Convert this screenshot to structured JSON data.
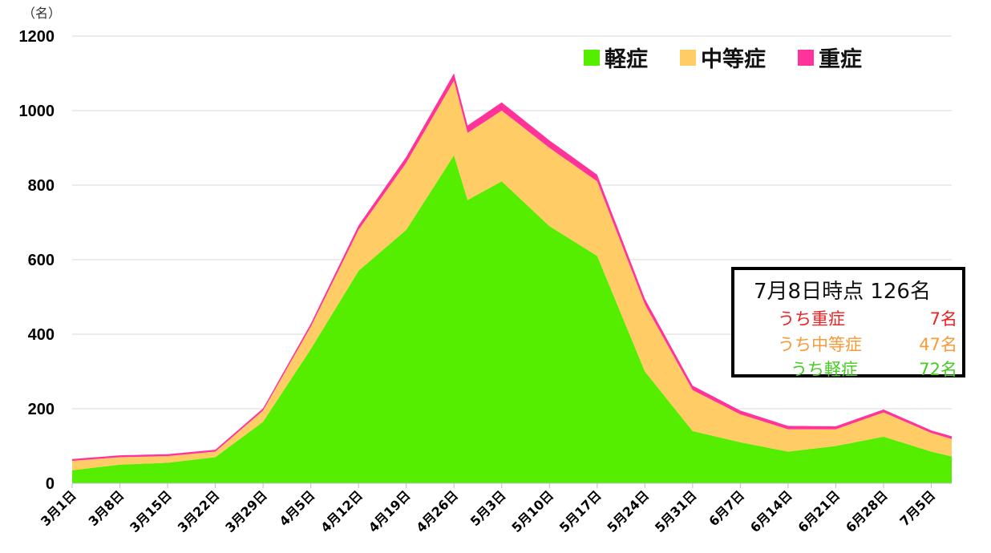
{
  "unit_label": "（名）",
  "legend": [
    {
      "label": "軽症",
      "color": "#55ee00"
    },
    {
      "label": "中等症",
      "color": "#ffcc66"
    },
    {
      "label": "重症",
      "color": "#ff3399"
    }
  ],
  "info_box": {
    "title": "7月8日時点 126名",
    "rows": [
      {
        "label": "うち重症",
        "value": "7名",
        "color": "#ee2222"
      },
      {
        "label": "うち中等症",
        "value": "47名",
        "color": "#f79a3a"
      },
      {
        "label": "うち軽症",
        "value": "72名",
        "color": "#44cc22"
      }
    ]
  },
  "chart_data": {
    "type": "area",
    "stacked": true,
    "ylim": [
      0,
      1200
    ],
    "yticks": [
      0,
      200,
      400,
      600,
      800,
      1000,
      1200
    ],
    "xlim": [
      0,
      129
    ],
    "xtick_labels": [
      "3月1日",
      "3月8日",
      "3月15日",
      "3月22日",
      "3月29日",
      "4月5日",
      "4月12日",
      "4月19日",
      "4月26日",
      "5月3日",
      "5月10日",
      "5月17日",
      "5月24日",
      "5月31日",
      "6月7日",
      "6月14日",
      "6月21日",
      "6月28日",
      "7月5日"
    ],
    "xtick_days": [
      0,
      7,
      14,
      21,
      28,
      35,
      42,
      49,
      56,
      63,
      70,
      77,
      84,
      91,
      98,
      105,
      112,
      119,
      126
    ],
    "grid": true,
    "legend_position": "top-right",
    "series": [
      {
        "name": "軽症",
        "color": "#55ee00",
        "points": [
          [
            0,
            35
          ],
          [
            7,
            50
          ],
          [
            14,
            55
          ],
          [
            21,
            70
          ],
          [
            28,
            165
          ],
          [
            35,
            360
          ],
          [
            42,
            570
          ],
          [
            49,
            680
          ],
          [
            56,
            880
          ],
          [
            58,
            760
          ],
          [
            63,
            810
          ],
          [
            70,
            690
          ],
          [
            77,
            610
          ],
          [
            84,
            300
          ],
          [
            91,
            140
          ],
          [
            98,
            110
          ],
          [
            105,
            85
          ],
          [
            112,
            100
          ],
          [
            119,
            125
          ],
          [
            126,
            85
          ],
          [
            129,
            72
          ]
        ]
      },
      {
        "name": "中等症",
        "color": "#ffcc66",
        "points": [
          [
            0,
            25
          ],
          [
            7,
            20
          ],
          [
            14,
            18
          ],
          [
            21,
            15
          ],
          [
            28,
            30
          ],
          [
            35,
            60
          ],
          [
            42,
            110
          ],
          [
            49,
            180
          ],
          [
            56,
            200
          ],
          [
            58,
            180
          ],
          [
            63,
            190
          ],
          [
            70,
            210
          ],
          [
            77,
            200
          ],
          [
            84,
            180
          ],
          [
            91,
            110
          ],
          [
            98,
            75
          ],
          [
            105,
            60
          ],
          [
            112,
            45
          ],
          [
            119,
            65
          ],
          [
            126,
            50
          ],
          [
            129,
            47
          ]
        ]
      },
      {
        "name": "重症",
        "color": "#ff3399",
        "points": [
          [
            0,
            5
          ],
          [
            7,
            5
          ],
          [
            14,
            5
          ],
          [
            21,
            5
          ],
          [
            28,
            6
          ],
          [
            35,
            8
          ],
          [
            42,
            12
          ],
          [
            49,
            16
          ],
          [
            56,
            20
          ],
          [
            58,
            20
          ],
          [
            63,
            22
          ],
          [
            70,
            20
          ],
          [
            77,
            18
          ],
          [
            84,
            15
          ],
          [
            91,
            12
          ],
          [
            98,
            10
          ],
          [
            105,
            9
          ],
          [
            112,
            8
          ],
          [
            119,
            8
          ],
          [
            126,
            7
          ],
          [
            129,
            7
          ]
        ]
      }
    ]
  }
}
